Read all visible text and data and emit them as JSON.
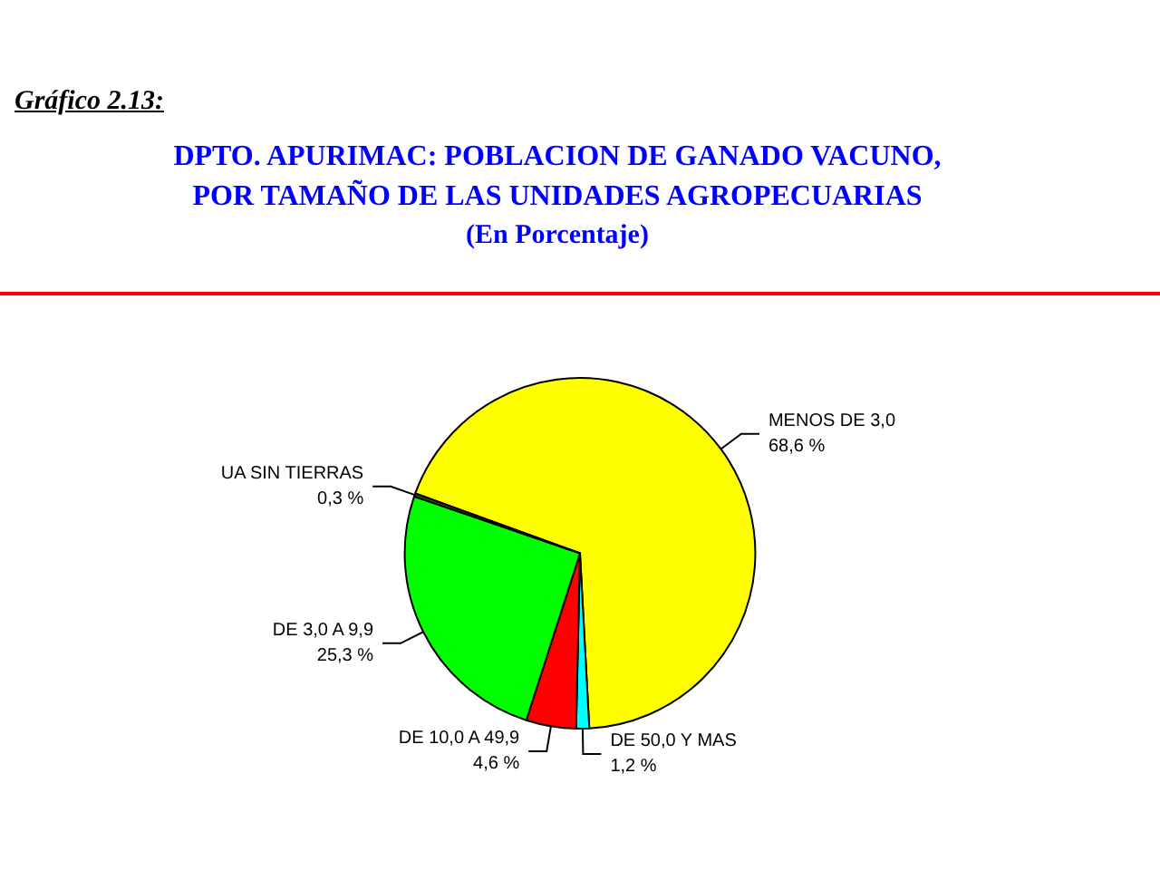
{
  "chart_data": {
    "type": "pie",
    "title": "DPTO. APURIMAC: POBLACION DE GANADO VACUNO, POR TAMAÑO DE LAS UNIDADES AGROPECUARIAS",
    "subtitle": "(En Porcentaje)",
    "annotations": [
      "Gráfico 2.13:"
    ],
    "categories": [
      "MENOS DE 3,0",
      "DE 50,0 Y MAS",
      "DE 10,0 A 49,9",
      "DE 3,0 A 9,9",
      "UA SIN TIERRAS"
    ],
    "values": [
      68.6,
      1.2,
      4.6,
      25.3,
      0.3
    ],
    "colors": [
      "#ffff00",
      "#00ffff",
      "#ff0000",
      "#00ff00",
      "#0a5a0a"
    ],
    "value_labels": [
      "68,6 %",
      "1,2 %",
      "4,6 %",
      "25,3 %",
      "0,3 %"
    ]
  }
}
